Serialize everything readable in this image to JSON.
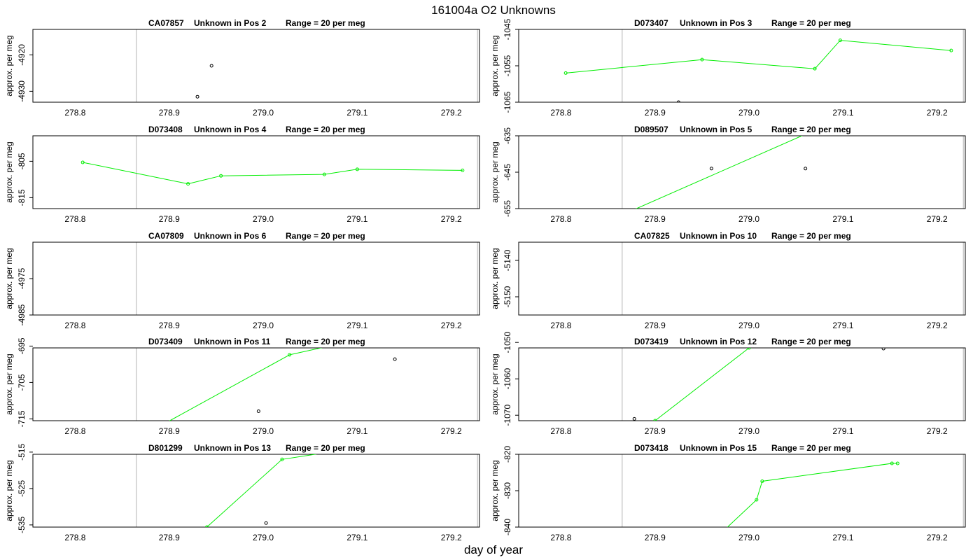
{
  "figure": {
    "title": "161004a  O2 Unknowns",
    "xlabel": "day of year",
    "xticks": [
      "278.8",
      "278.9",
      "279.0",
      "279.1",
      "279.2"
    ],
    "colors": {
      "line": "#00ee00",
      "black_points": "#000000",
      "frame": "#000000",
      "bounds": "#cccccc"
    }
  },
  "chart_data": [
    {
      "type": "scatter",
      "sample": "CA07857",
      "label": "Unknown in Pos 2",
      "range_text": "Range = 20 per meg",
      "ylabel": "approx. per meg",
      "xlim": [
        278.755,
        279.23
      ],
      "ylim": [
        -4933,
        -4913
      ],
      "yticks": [
        -4920,
        -4930
      ],
      "bounds": [
        278.865,
        279.228
      ],
      "green": [],
      "black": [
        [
          278.93,
          -4931.5
        ],
        [
          278.945,
          -4923.0
        ]
      ]
    },
    {
      "type": "line",
      "sample": "D073407",
      "label": "Unknown in Pos 3",
      "range_text": "Range = 20 per meg",
      "ylabel": "approx. per meg",
      "xlim": [
        278.755,
        279.23
      ],
      "ylim": [
        -1065,
        -1045
      ],
      "yticks": [
        -1045,
        -1055,
        -1065
      ],
      "bounds": [
        278.865,
        279.228
      ],
      "green": [
        [
          278.805,
          -1057.0
        ],
        [
          278.95,
          -1053.3
        ],
        [
          279.07,
          -1055.8
        ],
        [
          279.097,
          -1048.0
        ],
        [
          279.215,
          -1050.8
        ]
      ],
      "black": [
        [
          278.925,
          -1065.0
        ]
      ]
    },
    {
      "type": "line",
      "sample": "D073408",
      "label": "Unknown in Pos 4",
      "range_text": "Range = 20 per meg",
      "ylabel": "approx. per meg",
      "xlim": [
        278.755,
        279.23
      ],
      "ylim": [
        -818,
        -798
      ],
      "yticks": [
        -805,
        -815
      ],
      "bounds": [
        278.865,
        279.228
      ],
      "green": [
        [
          278.808,
          -805.3
        ],
        [
          278.92,
          -811.2
        ],
        [
          278.955,
          -809.0
        ],
        [
          279.065,
          -808.6
        ],
        [
          279.1,
          -807.2
        ],
        [
          279.212,
          -807.5
        ]
      ],
      "black": []
    },
    {
      "type": "line",
      "sample": "D089507",
      "label": "Unknown in Pos 5",
      "range_text": "Range = 20 per meg",
      "ylabel": "approx. per meg",
      "xlim": [
        278.755,
        279.23
      ],
      "ylim": [
        -655,
        -635
      ],
      "yticks": [
        -635,
        -645,
        -655
      ],
      "bounds": [
        278.865,
        279.228
      ],
      "green": [
        [
          278.867,
          -656.5
        ],
        [
          279.065,
          -634.0
        ]
      ],
      "black": [
        [
          278.96,
          -644.0
        ],
        [
          279.06,
          -644.0
        ]
      ]
    },
    {
      "type": "scatter",
      "sample": "CA07809",
      "label": "Unknown in Pos 6",
      "range_text": "Range = 20 per meg",
      "ylabel": "approx. per meg",
      "xlim": [
        278.755,
        279.23
      ],
      "ylim": [
        -4985,
        -4965
      ],
      "yticks": [
        -4975,
        -4985
      ],
      "bounds": [
        278.865,
        279.228
      ],
      "green": [],
      "black": []
    },
    {
      "type": "scatter",
      "sample": "CA07825",
      "label": "Unknown in Pos 10",
      "range_text": "Range = 20 per meg",
      "ylabel": "approx. per meg",
      "xlim": [
        278.755,
        279.23
      ],
      "ylim": [
        -5155,
        -5135
      ],
      "yticks": [
        -5140,
        -5150
      ],
      "bounds": [
        278.865,
        279.228
      ],
      "green": [],
      "black": []
    },
    {
      "type": "line",
      "sample": "D073409",
      "label": "Unknown in Pos 11",
      "range_text": "Range = 20 per meg",
      "ylabel": "approx. per meg",
      "xlim": [
        278.755,
        279.23
      ],
      "ylim": [
        -715.5,
        -695.5
      ],
      "yticks": [
        -695,
        -705,
        -715
      ],
      "bounds": [
        278.865,
        279.228
      ],
      "green": [
        [
          278.89,
          -717.0
        ],
        [
          279.028,
          -697.4
        ],
        [
          279.07,
          -695.0
        ]
      ],
      "black": [
        [
          278.995,
          -712.9
        ],
        [
          279.14,
          -698.6
        ]
      ]
    },
    {
      "type": "line",
      "sample": "D073419",
      "label": "Unknown in Pos 12",
      "range_text": "Range = 20 per meg",
      "ylabel": "approx. per meg",
      "xlim": [
        278.755,
        279.23
      ],
      "ylim": [
        -1071.5,
        -1051.5
      ],
      "yticks": [
        -1050,
        -1060,
        -1070
      ],
      "bounds": [
        278.865,
        279.228
      ],
      "green": [
        [
          278.9,
          -1071.5
        ],
        [
          279.0,
          -1051.5
        ]
      ],
      "black": [
        [
          278.878,
          -1071.0
        ],
        [
          279.143,
          -1051.7
        ]
      ]
    },
    {
      "type": "line",
      "sample": "D801299",
      "label": "Unknown in Pos 13",
      "range_text": "Range = 20 per meg",
      "ylabel": "approx. per meg",
      "xlim": [
        278.755,
        279.23
      ],
      "ylim": [
        -535.6,
        -515.6
      ],
      "yticks": [
        -515,
        -525,
        -535
      ],
      "bounds": [
        278.865,
        279.228
      ],
      "green": [
        [
          278.94,
          -535.6
        ],
        [
          279.02,
          -517.0
        ],
        [
          279.07,
          -515.0
        ]
      ],
      "black": [
        [
          279.003,
          -534.5
        ]
      ]
    },
    {
      "type": "line",
      "sample": "D073418",
      "label": "Unknown in Pos 15",
      "range_text": "Range = 20 per meg",
      "ylabel": "approx. per meg",
      "xlim": [
        278.755,
        279.23
      ],
      "ylim": [
        -840,
        -820
      ],
      "yticks": [
        -820,
        -830,
        -840
      ],
      "bounds": [
        278.865,
        279.228
      ],
      "green": [
        [
          278.975,
          -840.5
        ],
        [
          279.008,
          -832.5
        ],
        [
          279.014,
          -827.4
        ],
        [
          279.152,
          -822.5
        ],
        [
          279.158,
          -822.5
        ]
      ],
      "black": []
    }
  ]
}
